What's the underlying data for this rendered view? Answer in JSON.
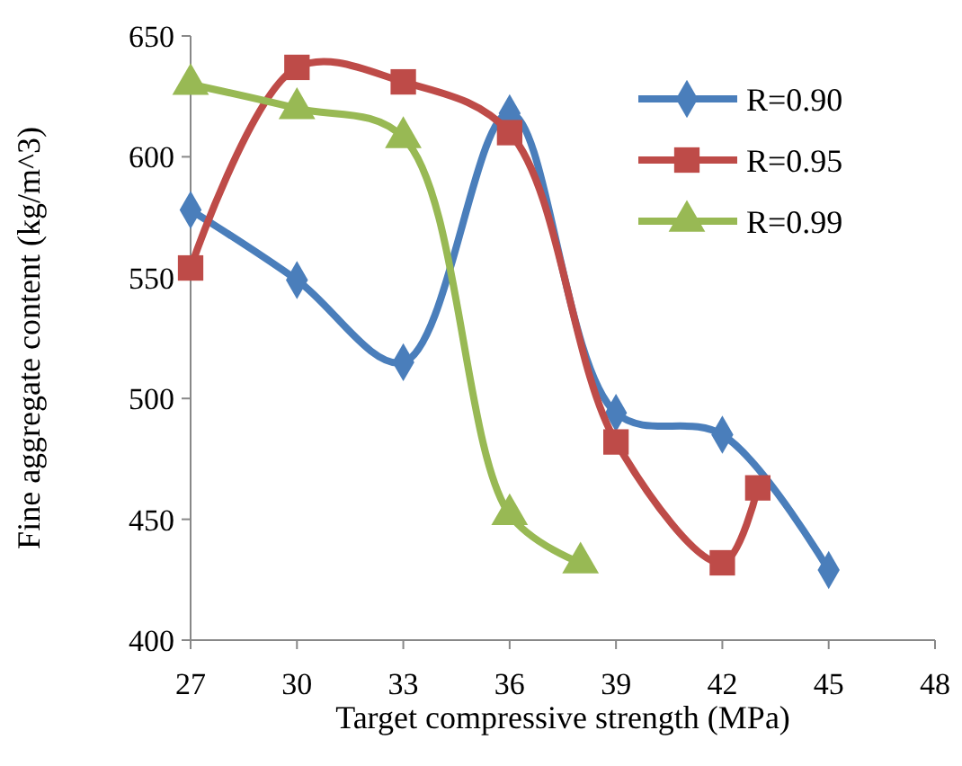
{
  "chart_data": {
    "type": "line",
    "xlabel": "Target compressive strength (MPa)",
    "ylabel": "Fine aggregate content (kg/m^3)",
    "xlim": [
      27,
      48
    ],
    "xticks": [
      27,
      30,
      33,
      36,
      39,
      42,
      45,
      48
    ],
    "ylim": [
      400,
      650
    ],
    "yticks": [
      400,
      450,
      500,
      550,
      600,
      650
    ],
    "grid": false,
    "legend": "top right",
    "series": [
      {
        "name": "R=0.90",
        "color": "#4a7ebb",
        "marker": "diamond",
        "x": [
          27,
          30,
          33,
          36,
          39,
          42,
          45
        ],
        "values": [
          578,
          549,
          515,
          618,
          494,
          485,
          429
        ]
      },
      {
        "name": "R=0.95",
        "color": "#be4b48",
        "marker": "square",
        "x": [
          27,
          30,
          33,
          36,
          39,
          42,
          43
        ],
        "values": [
          554,
          637,
          631,
          610,
          482,
          432,
          463
        ]
      },
      {
        "name": "R=0.99",
        "color": "#98b954",
        "marker": "triangle",
        "x": [
          27,
          30,
          33,
          36,
          38
        ],
        "values": [
          630,
          620,
          608,
          452,
          432
        ]
      }
    ]
  }
}
